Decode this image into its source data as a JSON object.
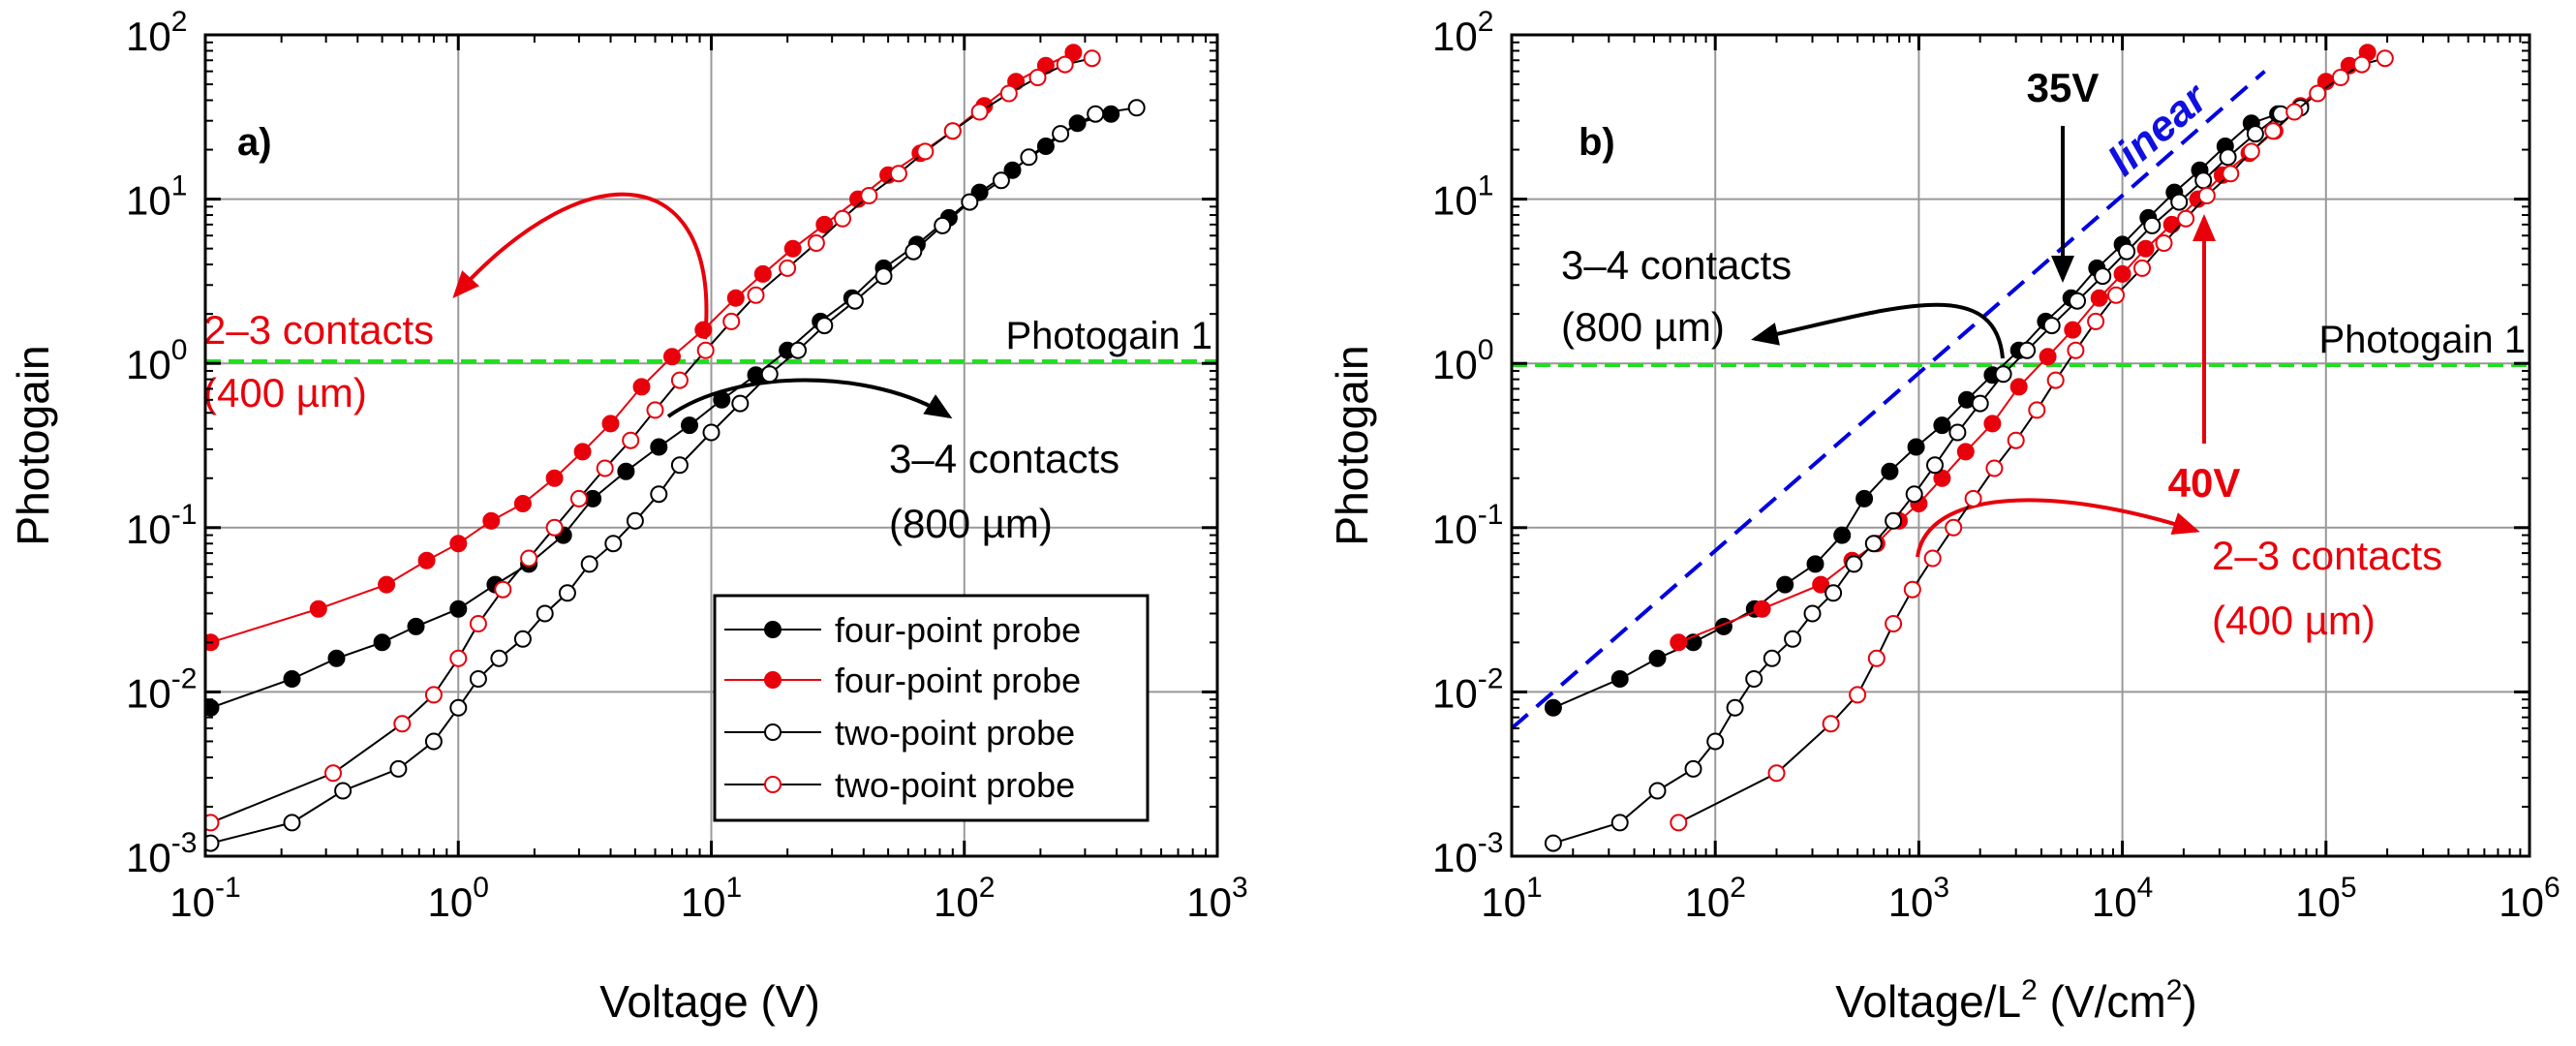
{
  "figure": {
    "panels": [
      {
        "id": "a",
        "panel_label": "a)",
        "xlabel": "Voltage (V)",
        "ylabel": "Photogain",
        "x_log_range": [
          -1,
          3
        ],
        "y_log_range": [
          -3,
          2
        ],
        "x_ticks": [
          {
            "exp": "-1"
          },
          {
            "exp": "0"
          },
          {
            "exp": "1"
          },
          {
            "exp": "2"
          },
          {
            "exp": "3"
          }
        ],
        "y_ticks": [
          {
            "exp": "-3"
          },
          {
            "exp": "-2"
          },
          {
            "exp": "-1"
          },
          {
            "exp": "0"
          },
          {
            "exp": "1"
          },
          {
            "exp": "2"
          }
        ],
        "tick_base": "10",
        "photogain_label": "Photogain 1",
        "annotations": [
          {
            "id": "contacts23",
            "line1": "2–3 contacts",
            "line2": "(400 µm)",
            "color": "#e8000b"
          },
          {
            "id": "contacts34",
            "line1": "3–4 contacts",
            "line2": "(800 µm)",
            "color": "#000000"
          }
        ],
        "legend": [
          {
            "label": "four-point probe",
            "color": "#000000",
            "filled": true
          },
          {
            "label": "four-point probe",
            "color": "#e8000b",
            "filled": true
          },
          {
            "label": "two-point probe",
            "color": "#000000",
            "filled": false
          },
          {
            "label": "two-point probe",
            "color": "#e8000b",
            "filled": false
          }
        ]
      },
      {
        "id": "b",
        "panel_label": "b)",
        "xlabel_main": "Voltage/L",
        "xlabel_sup": "2",
        "xlabel_mid": " (V/cm",
        "xlabel_sup2": "2",
        "xlabel_end": ")",
        "ylabel": "Photogain",
        "x_log_range": [
          1,
          6
        ],
        "y_log_range": [
          -3,
          2
        ],
        "x_ticks": [
          {
            "exp": "1"
          },
          {
            "exp": "2"
          },
          {
            "exp": "3"
          },
          {
            "exp": "4"
          },
          {
            "exp": "5"
          },
          {
            "exp": "6"
          }
        ],
        "y_ticks": [
          {
            "exp": "-3"
          },
          {
            "exp": "-2"
          },
          {
            "exp": "-1"
          },
          {
            "exp": "0"
          },
          {
            "exp": "1"
          },
          {
            "exp": "2"
          }
        ],
        "tick_base": "10",
        "photogain_label": "Photogain 1",
        "linear_label": "linear",
        "arrow_35": "35V",
        "arrow_40": "40V",
        "annotations": [
          {
            "id": "contacts34b",
            "line1": "3–4 contacts",
            "line2": "(800 µm)",
            "color": "#000000"
          },
          {
            "id": "contacts23b",
            "line1": "2–3 contacts",
            "line2": "(400 µm)",
            "color": "#e8000b"
          }
        ]
      }
    ]
  },
  "chart_data": [
    {
      "type": "scatter",
      "title": "a)",
      "xlabel": "Voltage (V)",
      "ylabel": "Photogain",
      "xscale": "log",
      "yscale": "log",
      "xlim": [
        0.1,
        1000
      ],
      "ylim": [
        0.001,
        100
      ],
      "grid": true,
      "reference_lines": [
        {
          "label": "Photogain 1",
          "y": 1,
          "color": "#00d000",
          "style": "dashed"
        }
      ],
      "series": [
        {
          "name": "four-point probe (3–4 contacts, 800 µm)",
          "color": "#000000",
          "filled": true,
          "x": [
            0.105,
            0.22,
            0.33,
            0.5,
            0.68,
            1.0,
            1.4,
            1.9,
            2.6,
            3.4,
            4.6,
            6.2,
            8.2,
            11,
            15,
            20,
            27,
            36,
            48,
            65,
            87,
            115,
            155,
            210,
            280,
            380
          ],
          "y": [
            0.008,
            0.012,
            0.016,
            0.02,
            0.025,
            0.032,
            0.045,
            0.06,
            0.09,
            0.15,
            0.22,
            0.31,
            0.42,
            0.6,
            0.85,
            1.2,
            1.8,
            2.5,
            3.8,
            5.3,
            7.7,
            11,
            15,
            21,
            29,
            33
          ]
        },
        {
          "name": "four-point probe (2–3 contacts, 400 µm)",
          "color": "#e8000b",
          "filled": true,
          "x": [
            0.105,
            0.28,
            0.52,
            0.75,
            1.0,
            1.35,
            1.8,
            2.4,
            3.1,
            4.0,
            5.3,
            7.0,
            9.3,
            12.5,
            16,
            21,
            28,
            38,
            50,
            67,
            90,
            120,
            160,
            210,
            270
          ],
          "y": [
            0.02,
            0.032,
            0.045,
            0.063,
            0.08,
            0.11,
            0.14,
            0.2,
            0.29,
            0.43,
            0.72,
            1.1,
            1.6,
            2.5,
            3.5,
            5.0,
            7.0,
            10,
            14,
            19,
            26,
            37,
            52,
            65,
            78
          ]
        },
        {
          "name": "two-point probe (3–4 contacts, 800 µm)",
          "color": "#000000",
          "filled": false,
          "x": [
            0.105,
            0.22,
            0.35,
            0.58,
            0.8,
            1.0,
            1.2,
            1.45,
            1.8,
            2.2,
            2.7,
            3.3,
            4.1,
            5.0,
            6.2,
            7.5,
            10,
            13,
            17,
            22,
            28,
            37,
            48,
            63,
            82,
            105,
            140,
            180,
            240,
            330,
            480
          ],
          "y": [
            0.0012,
            0.0016,
            0.0025,
            0.0034,
            0.005,
            0.008,
            0.012,
            0.016,
            0.021,
            0.03,
            0.04,
            0.06,
            0.08,
            0.11,
            0.16,
            0.24,
            0.38,
            0.57,
            0.86,
            1.2,
            1.7,
            2.4,
            3.4,
            4.8,
            6.9,
            9.6,
            13,
            18,
            25,
            33,
            36
          ]
        },
        {
          "name": "two-point probe (2–3 contacts, 400 µm)",
          "color": "#e8000b",
          "filled": false,
          "x": [
            0.105,
            0.32,
            0.6,
            0.8,
            1.0,
            1.2,
            1.5,
            1.9,
            2.4,
            3.0,
            3.8,
            4.8,
            6.0,
            7.5,
            9.5,
            12,
            15,
            20,
            26,
            33,
            42,
            55,
            70,
            90,
            115,
            150,
            195,
            250,
            320
          ],
          "y": [
            0.0016,
            0.0032,
            0.0064,
            0.0096,
            0.016,
            0.026,
            0.042,
            0.065,
            0.1,
            0.15,
            0.23,
            0.34,
            0.52,
            0.79,
            1.2,
            1.8,
            2.6,
            3.8,
            5.4,
            7.6,
            10.5,
            14.3,
            19.5,
            26,
            34,
            44,
            55,
            66,
            72
          ]
        }
      ]
    },
    {
      "type": "scatter",
      "title": "b)",
      "xlabel": "Voltage/L² (V/cm²)",
      "ylabel": "Photogain",
      "xscale": "log",
      "yscale": "log",
      "xlim": [
        10,
        1000000
      ],
      "ylim": [
        0.001,
        100
      ],
      "grid": true,
      "reference_lines": [
        {
          "label": "Photogain 1",
          "y": 1,
          "color": "#00d000",
          "style": "dashed"
        },
        {
          "label": "linear",
          "x": [
            10,
            50000
          ],
          "y": [
            0.006,
            60
          ],
          "color": "#0000e0",
          "style": "dashed"
        }
      ],
      "arrows": [
        {
          "label": "35V",
          "x": 5470,
          "color": "#000000"
        },
        {
          "label": "40V",
          "x": 25000,
          "color": "#e8000b"
        }
      ],
      "series": [
        {
          "name": "four-point probe (3–4 contacts, 800 µm)",
          "color": "#000000",
          "filled": true,
          "x": [
            16,
            34,
            52,
            78,
            110,
            156,
            220,
            310,
            420,
            540,
            720,
            970,
            1300,
            1720,
            2300,
            3100,
            4200,
            5600,
            7500,
            10000,
            13400,
            18000,
            24000,
            32000,
            43000,
            58000
          ],
          "y": [
            0.008,
            0.012,
            0.016,
            0.02,
            0.025,
            0.032,
            0.045,
            0.06,
            0.09,
            0.15,
            0.22,
            0.31,
            0.42,
            0.6,
            0.85,
            1.2,
            1.8,
            2.5,
            3.8,
            5.3,
            7.7,
            11,
            15,
            21,
            29,
            33
          ]
        },
        {
          "name": "four-point probe (2–3 contacts, 400 µm)",
          "color": "#e8000b",
          "filled": true,
          "x": [
            66,
            170,
            330,
            470,
            620,
            800,
            1000,
            1300,
            1700,
            2300,
            3100,
            4300,
            5700,
            7700,
            10000,
            13000,
            17500,
            23500,
            31000,
            42000,
            56000,
            75000,
            100000,
            130000,
            160000
          ],
          "y": [
            0.02,
            0.032,
            0.045,
            0.063,
            0.08,
            0.11,
            0.14,
            0.2,
            0.29,
            0.43,
            0.72,
            1.1,
            1.6,
            2.5,
            3.5,
            5.0,
            7.0,
            10,
            14,
            19,
            26,
            37,
            52,
            65,
            78
          ]
        },
        {
          "name": "two-point probe (3–4 contacts, 800 µm)",
          "color": "#000000",
          "filled": false,
          "x": [
            16,
            34,
            52,
            78,
            100,
            125,
            155,
            190,
            240,
            300,
            380,
            480,
            600,
            750,
            950,
            1200,
            1550,
            2000,
            2600,
            3400,
            4500,
            6000,
            8000,
            10500,
            14000,
            19000,
            25000,
            33000,
            45000,
            60000,
            75000
          ],
          "y": [
            0.0012,
            0.0016,
            0.0025,
            0.0034,
            0.005,
            0.008,
            0.012,
            0.016,
            0.021,
            0.03,
            0.04,
            0.06,
            0.08,
            0.11,
            0.16,
            0.24,
            0.38,
            0.57,
            0.86,
            1.2,
            1.7,
            2.4,
            3.4,
            4.8,
            6.9,
            9.6,
            13,
            18,
            25,
            33,
            36
          ]
        },
        {
          "name": "two-point probe (2–3 contacts, 400 µm)",
          "color": "#e8000b",
          "filled": false,
          "x": [
            66,
            200,
            370,
            500,
            620,
            750,
            930,
            1170,
            1480,
            1850,
            2350,
            3000,
            3800,
            4700,
            5900,
            7400,
            9300,
            12500,
            16000,
            20500,
            26000,
            34000,
            43000,
            55000,
            70000,
            91000,
            118000,
            150000,
            195000
          ],
          "y": [
            0.0016,
            0.0032,
            0.0064,
            0.0096,
            0.016,
            0.026,
            0.042,
            0.065,
            0.1,
            0.15,
            0.23,
            0.34,
            0.52,
            0.79,
            1.2,
            1.8,
            2.6,
            3.8,
            5.4,
            7.6,
            10.5,
            14.3,
            19.5,
            26,
            34,
            44,
            55,
            66,
            72
          ]
        }
      ]
    }
  ]
}
